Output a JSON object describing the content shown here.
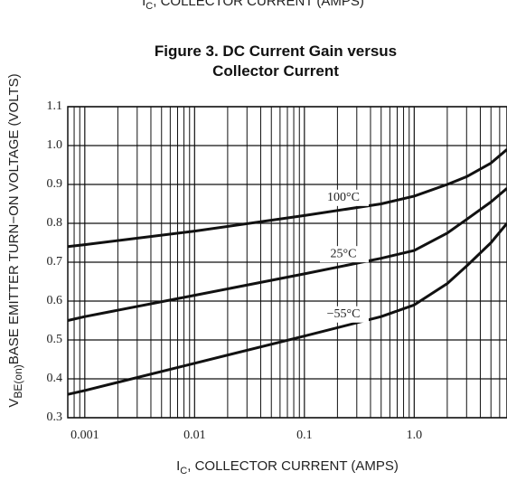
{
  "chart_data": {
    "type": "line",
    "header_label": {
      "main": "I",
      "sub": "C",
      "rest": ", COLLECTOR CURRENT (AMPS)"
    },
    "title": [
      "Figure 3. DC Current Gain versus",
      "Collector Current"
    ],
    "x_label": {
      "main": "I",
      "sub": "C",
      "rest": ", COLLECTOR CURRENT (AMPS)"
    },
    "y_label": {
      "main": "V",
      "sub": "BE(on)",
      "rest": "BASE EMITTER TURN−ON VOLTAGE (VOLTS)"
    },
    "log_x": true,
    "grid": true,
    "xlim": [
      0.0007,
      7
    ],
    "ylim": [
      0.3,
      1.1
    ],
    "xticks": [
      0.001,
      0.01,
      0.1,
      {
        "value": 1,
        "label": "1.0"
      }
    ],
    "xminorticks": [
      0.0008,
      0.0009,
      0.002,
      0.003,
      0.004,
      0.005,
      0.006,
      0.007,
      0.008,
      0.009,
      0.02,
      0.03,
      0.04,
      0.05,
      0.06,
      0.07,
      0.08,
      0.09,
      0.2,
      0.3,
      0.4,
      0.5,
      0.6,
      0.7,
      0.8,
      0.9,
      2,
      3,
      4,
      5,
      6
    ],
    "yticks": [
      0.3,
      0.4,
      0.5,
      0.6,
      0.7,
      0.8,
      0.9,
      {
        "value": 1,
        "label": "1.0"
      },
      1.1
    ],
    "x": [
      0.0007,
      0.001,
      0.01,
      0.1,
      0.5,
      1,
      2,
      3,
      5,
      7
    ],
    "series": [
      {
        "name": "100°C",
        "color": "#111111",
        "values": [
          0.74,
          0.745,
          0.78,
          0.82,
          0.85,
          0.87,
          0.9,
          0.92,
          0.955,
          0.99
        ]
      },
      {
        "name": "25°C",
        "color": "#111111",
        "values": [
          0.55,
          0.56,
          0.615,
          0.67,
          0.71,
          0.73,
          0.775,
          0.81,
          0.855,
          0.89
        ]
      },
      {
        "name": "−55°C",
        "color": "#111111",
        "values": [
          0.36,
          0.37,
          0.44,
          0.51,
          0.56,
          0.59,
          0.645,
          0.69,
          0.75,
          0.8
        ]
      }
    ]
  }
}
